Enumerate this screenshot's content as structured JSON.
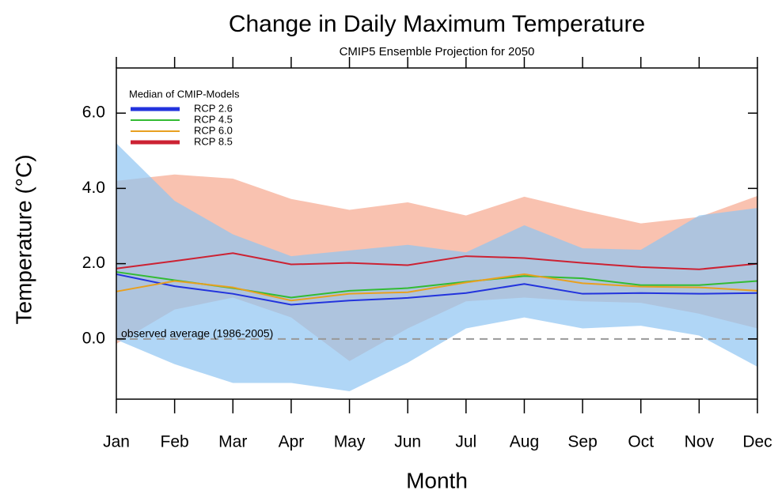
{
  "chart_data": {
    "type": "line",
    "title": "Change in Daily Maximum Temperature",
    "subtitle": "CMIP5 Ensemble Projection for 2050",
    "x_label": "Month",
    "y_label": "Temperature (°C)",
    "legend_title": "Median of CMIP-Models",
    "legend_position": "upper left",
    "annotation": "observed average (1986-2005)",
    "reference_value": 0,
    "categories": [
      "Jan",
      "Feb",
      "Mar",
      "Apr",
      "May",
      "Jun",
      "Jul",
      "Aug",
      "Sep",
      "Oct",
      "Nov",
      "Dec"
    ],
    "ylim": [
      -1.6,
      7.2
    ],
    "yticks": [
      {
        "value": 0,
        "label": "0.0"
      },
      {
        "value": 2,
        "label": "2.0"
      },
      {
        "value": 4,
        "label": "4.0"
      },
      {
        "value": 6,
        "label": "6.0"
      }
    ],
    "bands": [
      {
        "color": "#f6a88e",
        "upper": [
          4.2,
          4.37,
          4.26,
          3.72,
          3.43,
          3.63,
          3.28,
          3.78,
          3.41,
          3.07,
          3.24,
          3.8
        ],
        "lower": [
          -0.13,
          0.78,
          1.1,
          0.57,
          -0.59,
          0.28,
          1.0,
          1.1,
          1.0,
          0.96,
          0.67,
          0.28
        ]
      },
      {
        "color": "#8ec4f2",
        "upper": [
          5.2,
          3.67,
          2.78,
          2.2,
          2.35,
          2.5,
          2.3,
          3.02,
          2.41,
          2.37,
          3.28,
          3.48
        ],
        "lower": [
          -0.02,
          -0.67,
          -1.17,
          -1.17,
          -1.39,
          -0.63,
          0.28,
          0.57,
          0.28,
          0.35,
          0.09,
          -0.74
        ]
      }
    ],
    "series": [
      {
        "name": "RCP 2.6",
        "color": "#2233dd",
        "values": [
          1.72,
          1.4,
          1.2,
          0.91,
          1.02,
          1.09,
          1.22,
          1.46,
          1.2,
          1.22,
          1.2,
          1.22
        ]
      },
      {
        "name": "RCP 4.5",
        "color": "#33bb33",
        "values": [
          1.78,
          1.56,
          1.35,
          1.1,
          1.28,
          1.35,
          1.52,
          1.67,
          1.61,
          1.43,
          1.43,
          1.54
        ]
      },
      {
        "name": "RCP 6.0",
        "color": "#e8a020",
        "values": [
          1.26,
          1.54,
          1.37,
          1.02,
          1.2,
          1.24,
          1.5,
          1.72,
          1.48,
          1.39,
          1.37,
          1.28
        ]
      },
      {
        "name": "RCP 8.5",
        "color": "#cc2233",
        "values": [
          1.87,
          2.07,
          2.28,
          1.98,
          2.02,
          1.96,
          2.2,
          2.15,
          2.02,
          1.91,
          1.85,
          2.0
        ]
      }
    ]
  }
}
